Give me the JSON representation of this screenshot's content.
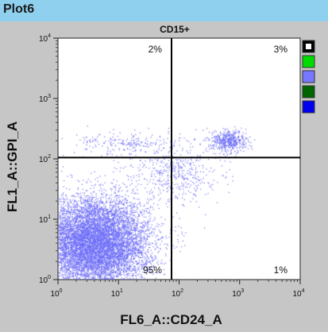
{
  "window": {
    "title": "Plot6"
  },
  "chart_data": {
    "type": "scatter",
    "title": "CD15+",
    "xlabel": "FL6_A::CD24_A",
    "ylabel": "FL1_A::GPI_A",
    "xscale": "log",
    "yscale": "log",
    "xlim": [
      1,
      10000
    ],
    "ylim": [
      1,
      10000
    ],
    "x_ticks": [
      {
        "base": "10",
        "exp": "0",
        "value": 1
      },
      {
        "base": "10",
        "exp": "1",
        "value": 10
      },
      {
        "base": "10",
        "exp": "2",
        "value": 100
      },
      {
        "base": "10",
        "exp": "3",
        "value": 1000
      },
      {
        "base": "10",
        "exp": "4",
        "value": 10000
      }
    ],
    "y_ticks": [
      {
        "base": "10",
        "exp": "0",
        "value": 1
      },
      {
        "base": "10",
        "exp": "1",
        "value": 10
      },
      {
        "base": "10",
        "exp": "2",
        "value": 100
      },
      {
        "base": "10",
        "exp": "3",
        "value": 1000
      },
      {
        "base": "10",
        "exp": "4",
        "value": 10000
      }
    ],
    "gate": {
      "x": 75,
      "y": 105
    },
    "quadrants": [
      {
        "position": "top-left",
        "label": "2%"
      },
      {
        "position": "top-right",
        "label": "3%"
      },
      {
        "position": "bottom-left",
        "label": "95%"
      },
      {
        "position": "bottom-right",
        "label": "1%"
      }
    ],
    "point_color": "#6f6ff7",
    "populations": [
      {
        "center_x": 4,
        "center_y": 4,
        "spread_x_decades": 0.45,
        "spread_y_decades": 0.38,
        "count": 9000
      },
      {
        "center_x": 650,
        "center_y": 200,
        "spread_x_decades": 0.15,
        "spread_y_decades": 0.09,
        "count": 500
      },
      {
        "center_x": 15,
        "center_y": 180,
        "spread_x_decades": 0.45,
        "spread_y_decades": 0.1,
        "count": 220
      },
      {
        "center_x": 90,
        "center_y": 60,
        "spread_x_decades": 0.35,
        "spread_y_decades": 0.25,
        "count": 450
      }
    ],
    "color_swatches": [
      "#000000",
      "#00dc00",
      "#7777ff",
      "#006400",
      "#0000ee"
    ]
  }
}
